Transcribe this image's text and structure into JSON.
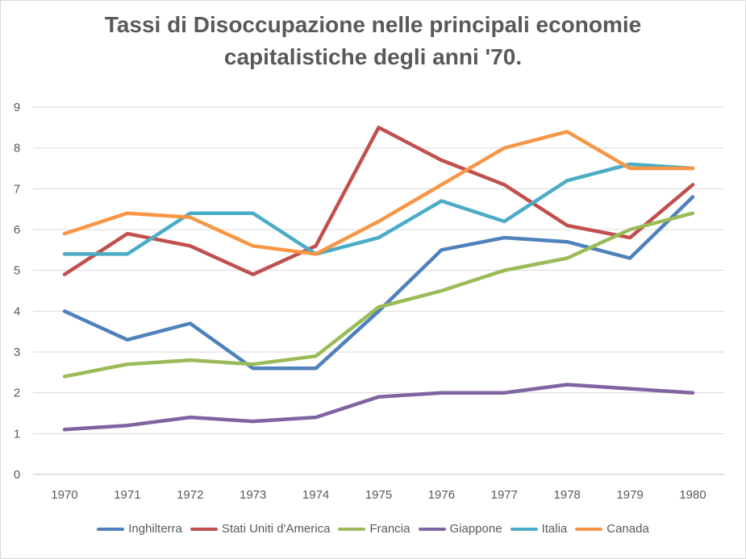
{
  "chart_data": {
    "type": "line",
    "title_lines": [
      "Tassi di Disoccupazione nelle principali economie",
      "capitalistiche degli anni '70."
    ],
    "xlabel": "",
    "ylabel": "",
    "x": [
      "1970",
      "1971",
      "1972",
      "1973",
      "1974",
      "1975",
      "1976",
      "1977",
      "1978",
      "1979",
      "1980"
    ],
    "ylim": [
      0,
      9
    ],
    "yticks": [
      "0",
      "1",
      "2",
      "3",
      "4",
      "5",
      "6",
      "7",
      "8",
      "9"
    ],
    "grid": true,
    "legend_position": "bottom",
    "series": [
      {
        "name": "Inghilterra",
        "color": "#4f81bd",
        "values": [
          4.0,
          3.3,
          3.7,
          2.6,
          2.6,
          4.0,
          5.5,
          5.8,
          5.7,
          5.3,
          6.8
        ]
      },
      {
        "name": "Stati Uniti d'America",
        "color": "#c0504d",
        "values": [
          4.9,
          5.9,
          5.6,
          4.9,
          5.6,
          8.5,
          7.7,
          7.1,
          6.1,
          5.8,
          7.1
        ]
      },
      {
        "name": "Francia",
        "color": "#9bbb59",
        "values": [
          2.4,
          2.7,
          2.8,
          2.7,
          2.9,
          4.1,
          4.5,
          5.0,
          5.3,
          6.0,
          6.4
        ]
      },
      {
        "name": "Giappone",
        "color": "#8064a2",
        "values": [
          1.1,
          1.2,
          1.4,
          1.3,
          1.4,
          1.9,
          2.0,
          2.0,
          2.2,
          2.1,
          2.0
        ]
      },
      {
        "name": "Italia",
        "color": "#4bacc6",
        "values": [
          5.4,
          5.4,
          6.4,
          6.4,
          5.4,
          5.8,
          6.7,
          6.2,
          7.2,
          7.6,
          7.5
        ]
      },
      {
        "name": "Canada",
        "color": "#f79646",
        "values": [
          5.9,
          6.4,
          6.3,
          5.6,
          5.4,
          6.2,
          7.1,
          8.0,
          8.4,
          7.5,
          7.5
        ]
      }
    ]
  }
}
